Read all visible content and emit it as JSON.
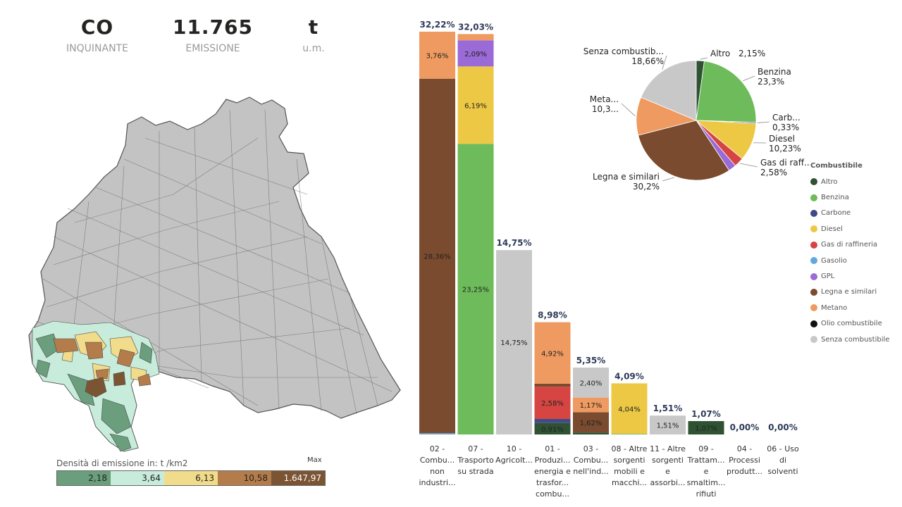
{
  "kpis": {
    "pollutant": {
      "value": "CO",
      "label": "INQUINANTE"
    },
    "emission": {
      "value": "11.765",
      "label": "EMISSIONE"
    },
    "unit": {
      "value": "t",
      "label": "u.m."
    }
  },
  "colors": {
    "Altro": "#2f5233",
    "Benzina": "#6dbb5a",
    "Carbone": "#3f4a86",
    "Diesel": "#edc844",
    "Gas di raffineria": "#d64541",
    "Gasolio": "#62a8de",
    "GPL": "#9a6ad6",
    "Legna e similari": "#7a4b2e",
    "Metano": "#ee9a60",
    "Olio combustibile": "#111111",
    "Senza combustibile": "#c8c8c8"
  },
  "density": {
    "title": "Densità di emissione in:  t /km2",
    "max_label": "Max",
    "classes": [
      {
        "value": "2,18",
        "color": "#6a9e7d"
      },
      {
        "value": "3,64",
        "color": "#c8ecdc"
      },
      {
        "value": "6,13",
        "color": "#f1dc8b"
      },
      {
        "value": "10,58",
        "color": "#b57c4b"
      },
      {
        "value": "1.647,97",
        "color": "#7b5434"
      }
    ]
  },
  "legend": {
    "title": "Combustibile",
    "items": [
      "Altro",
      "Benzina",
      "Carbone",
      "Diesel",
      "Gas di raffineria",
      "Gasolio",
      "GPL",
      "Legna e similari",
      "Metano",
      "Olio combustibile",
      "Senza combustibile"
    ]
  },
  "chart_data": [
    {
      "type": "bar",
      "stacked": true,
      "ylim": [
        0,
        32.22
      ],
      "categories": [
        [
          "02 -",
          "Combu...",
          "non",
          "industri..."
        ],
        [
          "07 -",
          "Trasporto",
          "su strada"
        ],
        [
          "10 -",
          "Agricolt..."
        ],
        [
          "01 -",
          "Produzi...",
          "energia e",
          "trasfor...",
          "combu..."
        ],
        [
          "03 -",
          "Combu...",
          "nell'ind..."
        ],
        [
          "08 - Altre",
          "sorgenti",
          "mobili e",
          "macchi..."
        ],
        [
          "11 - Altre",
          "sorgenti",
          "e",
          "assorbi..."
        ],
        [
          "09 -",
          "Trattam...",
          "e",
          "smaltim...",
          "rifiuti"
        ],
        [
          "04 -",
          "Processi",
          "produtt..."
        ],
        [
          "06 - Uso",
          "di",
          "solventi"
        ]
      ],
      "totals": [
        "32,22%",
        "32,03%",
        "14,75%",
        "8,98%",
        "5,35%",
        "4,09%",
        "1,51%",
        "1,07%",
        "0,00%",
        "0,00%"
      ],
      "total_values": [
        32.22,
        32.03,
        14.75,
        8.98,
        5.35,
        4.09,
        1.51,
        1.07,
        0,
        0
      ],
      "segments": [
        [
          {
            "fuel": "Gasolio",
            "value": 0.1,
            "label": ""
          },
          {
            "fuel": "Legna e similari",
            "value": 28.36,
            "label": "28,36%"
          },
          {
            "fuel": "Metano",
            "value": 3.76,
            "label": "3,76%"
          }
        ],
        [
          {
            "fuel": "Benzina",
            "value": 23.25,
            "label": "23,25%"
          },
          {
            "fuel": "Diesel",
            "value": 6.19,
            "label": "6,19%"
          },
          {
            "fuel": "GPL",
            "value": 2.09,
            "label": "2,09%"
          },
          {
            "fuel": "Metano",
            "value": 0.5,
            "label": ""
          }
        ],
        [
          {
            "fuel": "Senza combustibile",
            "value": 14.75,
            "label": "14,75%"
          }
        ],
        [
          {
            "fuel": "Altro",
            "value": 0.91,
            "label": "0,91%"
          },
          {
            "fuel": "Carbone",
            "value": 0.33,
            "label": ""
          },
          {
            "fuel": "Gas di raffineria",
            "value": 2.58,
            "label": "2,58%"
          },
          {
            "fuel": "Legna e similari",
            "value": 0.24,
            "label": ""
          },
          {
            "fuel": "Metano",
            "value": 4.92,
            "label": "4,92%"
          }
        ],
        [
          {
            "fuel": "Altro",
            "value": 0.16,
            "label": ""
          },
          {
            "fuel": "Legna e similari",
            "value": 1.62,
            "label": "1,62%"
          },
          {
            "fuel": "Metano",
            "value": 1.17,
            "label": "1,17%"
          },
          {
            "fuel": "Senza combustibile",
            "value": 2.4,
            "label": "2,40%"
          }
        ],
        [
          {
            "fuel": "Benzina",
            "value": 0.05,
            "label": ""
          },
          {
            "fuel": "Diesel",
            "value": 4.04,
            "label": "4,04%"
          }
        ],
        [
          {
            "fuel": "Senza combustibile",
            "value": 1.51,
            "label": "1,51%"
          }
        ],
        [
          {
            "fuel": "Altro",
            "value": 1.07,
            "label": "1,07%"
          }
        ],
        [],
        []
      ]
    },
    {
      "type": "pie",
      "slices": [
        {
          "fuel": "Altro",
          "value": 2.15,
          "name": "Altro",
          "pct": "2,15%"
        },
        {
          "fuel": "Benzina",
          "value": 23.3,
          "name": "Benzina",
          "pct": "23,3%"
        },
        {
          "fuel": "Carbone",
          "value": 0.33,
          "name": "Carb...",
          "pct": "0,33%"
        },
        {
          "fuel": "Diesel",
          "value": 10.23,
          "name": "Diesel",
          "pct": "10,23%"
        },
        {
          "fuel": "Gas di raffineria",
          "value": 2.58,
          "name": "Gas di raff...",
          "pct": "2,58%"
        },
        {
          "fuel": "GPL",
          "value": 2.09,
          "name": "",
          "pct": ""
        },
        {
          "fuel": "Legna e similari",
          "value": 30.2,
          "name": "Legna e similari",
          "pct": "30,2%"
        },
        {
          "fuel": "Metano",
          "value": 10.3,
          "name": "Meta...",
          "pct": "10,3..."
        },
        {
          "fuel": "Senza combustibile",
          "value": 18.66,
          "name": "Senza combustib...",
          "pct": "18,66%"
        }
      ]
    }
  ]
}
